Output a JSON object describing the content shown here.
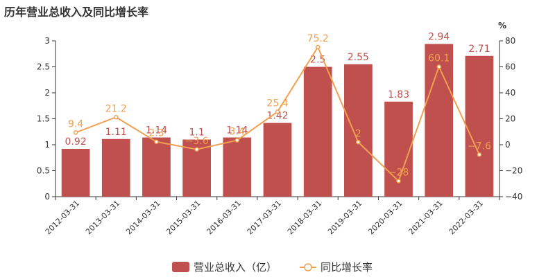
{
  "chart_data": {
    "type": "bar",
    "title": "历年营业总收入及同比增长率",
    "categories": [
      "2012-03-31",
      "2013-03-31",
      "2014-03-31",
      "2015-03-31",
      "2016-03-31",
      "2017-03-31",
      "2018-03-31",
      "2019-03-31",
      "2020-03-31",
      "2021-03-31",
      "2022-03-31"
    ],
    "series": [
      {
        "name": "营业总收入（亿）",
        "type": "bar",
        "axis": "left",
        "color": "#c0504d",
        "values": [
          0.92,
          1.11,
          1.14,
          1.1,
          1.14,
          1.42,
          2.5,
          2.55,
          1.83,
          2.94,
          2.71
        ],
        "labels": [
          "0.92",
          "1.11",
          "1.14",
          "1.1",
          "1.14",
          "1.42",
          "2.5",
          "2.55",
          "1.83",
          "2.94",
          "2.71"
        ]
      },
      {
        "name": "同比增长率",
        "type": "line",
        "axis": "right",
        "color": "#f0a050",
        "values": [
          9.4,
          21.2,
          2.3,
          -3.6,
          3.4,
          25.4,
          75.2,
          2,
          -28,
          60.1,
          -7.6
        ],
        "labels": [
          "9.4",
          "21.2",
          "2.3",
          "−3.6",
          "3.4",
          "25.4",
          "75.2",
          "2",
          "−28",
          "60.1",
          "−7.6"
        ]
      }
    ],
    "y_left": {
      "min": 0,
      "max": 3,
      "ticks": [
        "0",
        "0.5",
        "1",
        "1.5",
        "2",
        "2.5",
        "3"
      ],
      "tick_values": [
        0,
        0.5,
        1,
        1.5,
        2,
        2.5,
        3
      ]
    },
    "y_right": {
      "min": -40,
      "max": 80,
      "unit": "%",
      "ticks": [
        "−40",
        "−20",
        "0",
        "20",
        "40",
        "60",
        "80"
      ],
      "tick_values": [
        -40,
        -20,
        0,
        20,
        40,
        60,
        80
      ]
    },
    "grid": false,
    "legend_position": "bottom-center"
  }
}
